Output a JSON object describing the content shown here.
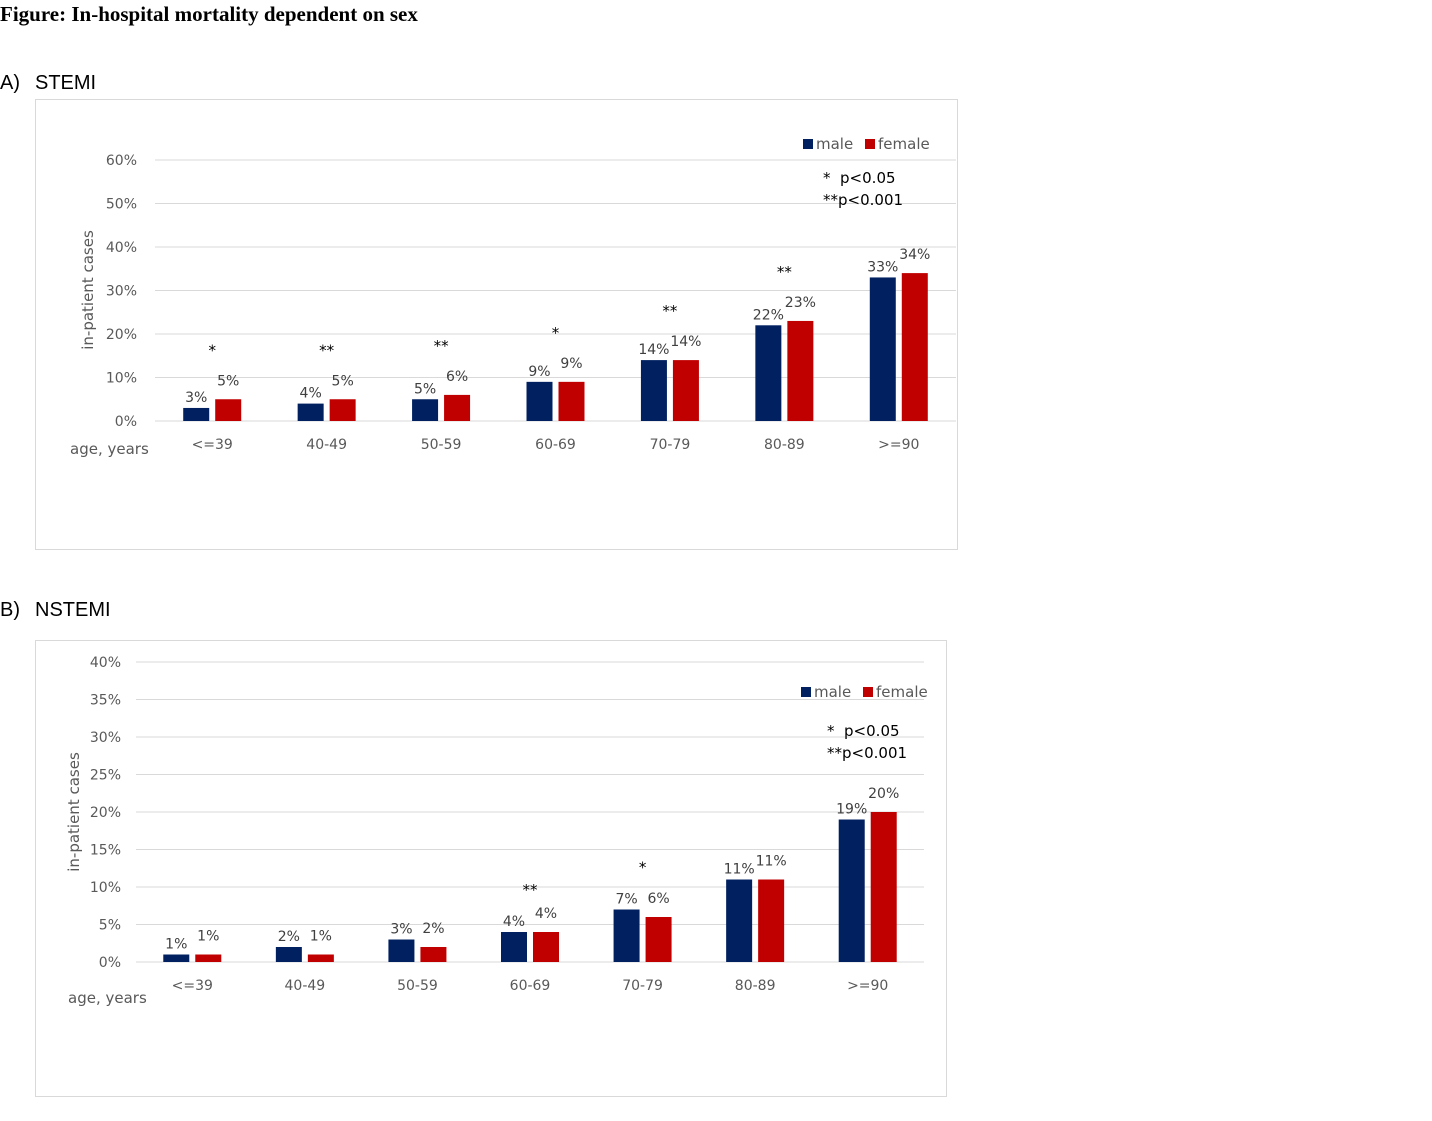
{
  "figure_title": "Figure: In-hospital mortality dependent on sex",
  "colors": {
    "male": "#002060",
    "female": "#C00000",
    "grid": "#d9d9d9",
    "text": "#595959"
  },
  "chart_data": [
    {
      "type": "bar",
      "panel_label": "A)",
      "panel_name": "STEMI",
      "categories": [
        "<=39",
        "40-49",
        "50-59",
        "60-69",
        "70-79",
        "80-89",
        ">=90"
      ],
      "series": [
        {
          "name": "male",
          "values": [
            3,
            4,
            5,
            9,
            14,
            22,
            33
          ],
          "labels": [
            "3%",
            "4%",
            "5%",
            "9%",
            "14%",
            "22%",
            "33%"
          ]
        },
        {
          "name": "female",
          "values": [
            5,
            5,
            6,
            9,
            14,
            23,
            34
          ],
          "labels": [
            "5%",
            "5%",
            "6%",
            "9%",
            "14%",
            "23%",
            "34%"
          ]
        }
      ],
      "significance": [
        "*",
        "**",
        "**",
        "*",
        "**",
        "**",
        ""
      ],
      "ylabel": "in-patient cases",
      "xlabel": "age, years",
      "ylim": [
        0,
        60
      ],
      "yticks": [
        0,
        10,
        20,
        30,
        40,
        50,
        60
      ],
      "ytick_labels": [
        "0%",
        "10%",
        "20%",
        "30%",
        "40%",
        "50%",
        "60%"
      ],
      "grid": true,
      "legend_position": "top-right",
      "notes": [
        "*  p<0.05",
        "**p<0.001"
      ]
    },
    {
      "type": "bar",
      "panel_label": "B)",
      "panel_name": "NSTEMI",
      "categories": [
        "<=39",
        "40-49",
        "50-59",
        "60-69",
        "70-79",
        "80-89",
        ">=90"
      ],
      "series": [
        {
          "name": "male",
          "values": [
            1,
            2,
            3,
            4,
            7,
            11,
            19
          ],
          "labels": [
            "1%",
            "2%",
            "3%",
            "4%",
            "7%",
            "11%",
            "19%"
          ]
        },
        {
          "name": "female",
          "values": [
            1,
            1,
            2,
            4,
            6,
            11,
            20
          ],
          "labels": [
            "1%",
            "1%",
            "2%",
            "4%",
            "6%",
            "11%",
            "20%"
          ]
        }
      ],
      "significance": [
        "",
        "",
        "",
        "**",
        "*",
        "",
        ""
      ],
      "ylabel": "in-patient cases",
      "xlabel": "age, years",
      "ylim": [
        0,
        40
      ],
      "yticks": [
        0,
        5,
        10,
        15,
        20,
        25,
        30,
        35,
        40
      ],
      "ytick_labels": [
        "0%",
        "5%",
        "10%",
        "15%",
        "20%",
        "25%",
        "30%",
        "35%",
        "40%"
      ],
      "grid": true,
      "legend_position": "top-right",
      "notes": [
        "*  p<0.05",
        "**p<0.001"
      ]
    }
  ]
}
